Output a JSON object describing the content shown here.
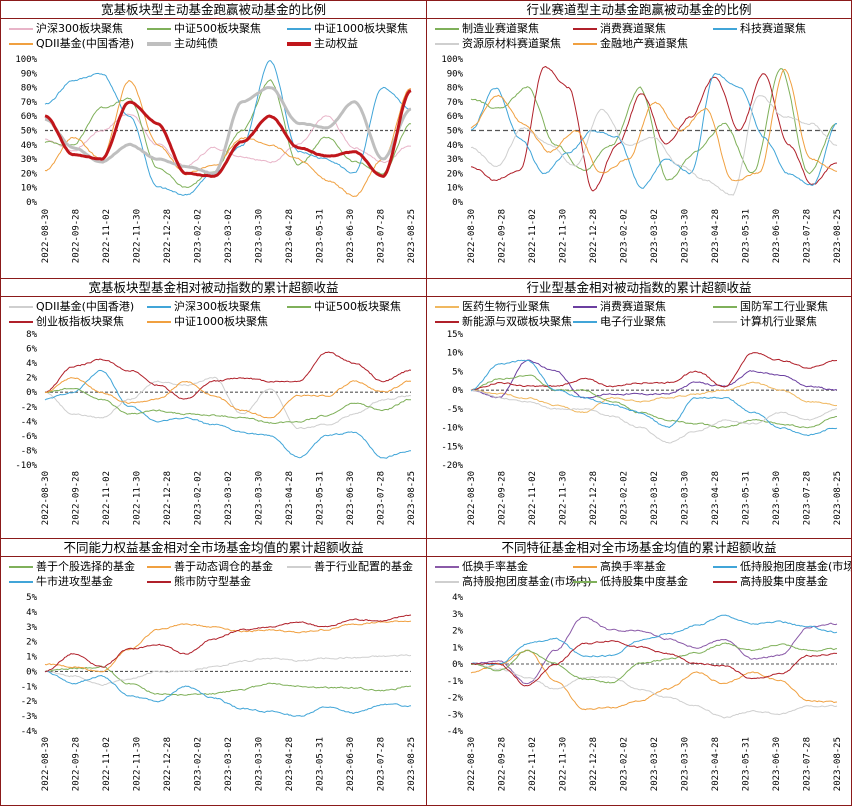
{
  "chart_data": [
    {
      "id": "p1",
      "type": "line",
      "title": "宽基板块型主动基金跑赢被动基金的比例",
      "xlabel": "",
      "ylabel": "",
      "x": [
        "2022-08-30",
        "2022-09-28",
        "2022-11-02",
        "2022-11-30",
        "2022-12-28",
        "2023-02-02",
        "2023-03-02",
        "2023-03-30",
        "2023-04-28",
        "2023-05-31",
        "2023-06-30",
        "2023-07-28",
        "2023-08-25"
      ],
      "ylim": [
        0,
        100
      ],
      "yticks": [
        0,
        10,
        20,
        30,
        40,
        50,
        60,
        70,
        80,
        90,
        100
      ],
      "ytick_labels": [
        "0%",
        "10%",
        "20%",
        "30%",
        "40%",
        "50%",
        "60%",
        "70%",
        "80%",
        "90%",
        "100%"
      ],
      "reference_line": 50,
      "grid": false,
      "legend_position": "top",
      "series": [
        {
          "name": "沪深300板块聚焦",
          "color": "#e8b4c8",
          "width": 1,
          "values": [
            44,
            36,
            50,
            62,
            40,
            25,
            38,
            32,
            28,
            40,
            60,
            38,
            28,
            40
          ]
        },
        {
          "name": "中证500板块聚焦",
          "color": "#7fb05a",
          "width": 1,
          "values": [
            42,
            40,
            66,
            72,
            24,
            10,
            22,
            50,
            85,
            26,
            45,
            28,
            20,
            55
          ]
        },
        {
          "name": "中证1000板块聚焦",
          "color": "#41a5d8",
          "width": 1,
          "values": [
            68,
            85,
            90,
            60,
            10,
            5,
            20,
            40,
            98,
            35,
            30,
            20,
            80,
            65
          ]
        },
        {
          "name": "QDII基金(中国香港)",
          "color": "#f0a040",
          "width": 1,
          "values": [
            22,
            45,
            30,
            85,
            40,
            20,
            25,
            45,
            40,
            30,
            15,
            4,
            30,
            80
          ]
        },
        {
          "name": "主动纯债",
          "color": "#bfbfbf",
          "width": 3,
          "values": [
            58,
            38,
            28,
            40,
            30,
            25,
            20,
            70,
            80,
            55,
            52,
            70,
            30,
            65
          ]
        },
        {
          "name": "主动权益",
          "color": "#c0161b",
          "width": 3,
          "values": [
            60,
            33,
            30,
            70,
            55,
            20,
            18,
            42,
            60,
            38,
            32,
            35,
            18,
            78
          ]
        }
      ]
    },
    {
      "id": "p2",
      "type": "line",
      "title": "行业赛道型主动基金跑赢被动基金的比例",
      "xlabel": "",
      "ylabel": "",
      "x": [
        "2022-08-30",
        "2022-09-28",
        "2022-11-02",
        "2022-11-30",
        "2022-12-28",
        "2023-02-02",
        "2023-03-02",
        "2023-03-30",
        "2023-04-28",
        "2023-05-31",
        "2023-06-30",
        "2023-07-28",
        "2023-08-25"
      ],
      "ylim": [
        0,
        100
      ],
      "yticks": [
        0,
        10,
        20,
        30,
        40,
        50,
        60,
        70,
        80,
        90,
        100
      ],
      "ytick_labels": [
        "0%",
        "10%",
        "20%",
        "30%",
        "40%",
        "50%",
        "60%",
        "70%",
        "80%",
        "90%",
        "100%"
      ],
      "reference_line": 50,
      "grid": false,
      "legend_position": "top",
      "series": [
        {
          "name": "制造业赛道聚焦",
          "color": "#7fb05a",
          "width": 1,
          "values": [
            72,
            65,
            80,
            40,
            22,
            40,
            80,
            15,
            35,
            55,
            20,
            93,
            20,
            55
          ]
        },
        {
          "name": "消费赛道聚焦",
          "color": "#b0202a",
          "width": 1,
          "values": [
            25,
            15,
            22,
            95,
            80,
            8,
            40,
            76,
            40,
            60,
            88,
            50,
            90,
            40,
            12,
            28
          ]
        },
        {
          "name": "科技赛道聚焦",
          "color": "#41a5d8",
          "width": 1,
          "values": [
            50,
            80,
            45,
            20,
            35,
            50,
            45,
            10,
            30,
            20,
            90,
            80,
            45,
            20,
            12,
            55
          ]
        },
        {
          "name": "资源原材料赛道聚焦",
          "color": "#cfcfcf",
          "width": 1,
          "values": [
            38,
            25,
            52,
            40,
            25,
            65,
            40,
            45,
            25,
            15,
            5,
            75,
            60,
            55,
            40
          ]
        },
        {
          "name": "金融地产赛道聚焦",
          "color": "#f0a040",
          "width": 1,
          "values": [
            52,
            75,
            55,
            35,
            50,
            20,
            30,
            70,
            50,
            65,
            15,
            20,
            92,
            30,
            22
          ]
        }
      ]
    },
    {
      "id": "p3",
      "type": "line",
      "title": "宽基板块型基金相对被动指数的累计超额收益",
      "xlabel": "",
      "ylabel": "",
      "x": [
        "2022-08-30",
        "2022-09-28",
        "2022-11-02",
        "2022-11-30",
        "2022-12-28",
        "2023-02-02",
        "2023-03-02",
        "2023-03-30",
        "2023-04-28",
        "2023-05-31",
        "2023-06-30",
        "2023-07-28",
        "2023-08-25"
      ],
      "ylim": [
        -10,
        8
      ],
      "yticks": [
        -10,
        -8,
        -6,
        -4,
        -2,
        0,
        2,
        4,
        6,
        8
      ],
      "ytick_labels": [
        "-10%",
        "-8%",
        "-6%",
        "-4%",
        "-2%",
        "0%",
        "2%",
        "4%",
        "6%",
        "8%"
      ],
      "reference_line": 0,
      "grid": false,
      "legend_position": "top",
      "series": [
        {
          "name": "QDII基金(中国香港)",
          "color": "#cfcfcf",
          "width": 1,
          "values": [
            0,
            -3,
            -3.5,
            -1,
            1.5,
            1,
            2,
            -3,
            0.5,
            -5,
            -4.5,
            -3,
            -1,
            -0.5
          ]
        },
        {
          "name": "沪深300板块聚焦",
          "color": "#41a5d8",
          "width": 1,
          "values": [
            -1,
            0,
            3,
            -2,
            -4,
            -3.5,
            -4.5,
            -5.5,
            -6,
            -9,
            -6,
            -5.5,
            -9,
            -8
          ]
        },
        {
          "name": "中证500板块聚焦",
          "color": "#7fb05a",
          "width": 1,
          "values": [
            0,
            0.5,
            -1,
            -3,
            -2.5,
            -3,
            -3.2,
            -3.5,
            -4.2,
            -4,
            -3.2,
            -1.5,
            -2.5,
            -1
          ]
        },
        {
          "name": "创业板指板块聚焦",
          "color": "#b0202a",
          "width": 1,
          "values": [
            0,
            3.5,
            4.5,
            3,
            1,
            -1,
            1.5,
            2,
            1.5,
            1.5,
            5.5,
            4,
            1.5,
            3
          ]
        },
        {
          "name": "中证1000板块聚焦",
          "color": "#f0a040",
          "width": 1,
          "values": [
            0,
            2,
            0,
            -1.5,
            -1,
            1.5,
            -0.5,
            -2.5,
            -3.5,
            -0.5,
            -0.5,
            1.5,
            0,
            1.5
          ]
        }
      ]
    },
    {
      "id": "p4",
      "type": "line",
      "title": "行业型基金相对被动指数的累计超额收益",
      "xlabel": "",
      "ylabel": "",
      "x": [
        "2022-08-30",
        "2022-09-28",
        "2022-11-02",
        "2022-11-30",
        "2022-12-28",
        "2023-02-02",
        "2023-03-02",
        "2023-03-30",
        "2023-04-28",
        "2023-05-31",
        "2023-06-30",
        "2023-07-28",
        "2023-08-25"
      ],
      "ylim": [
        -20,
        15
      ],
      "yticks": [
        -20,
        -15,
        -10,
        -5,
        0,
        5,
        10,
        15
      ],
      "ytick_labels": [
        "-20%",
        "-15%",
        "-10%",
        "-5%",
        "0%",
        "5%",
        "10%",
        "15%"
      ],
      "reference_line": 0,
      "grid": false,
      "legend_position": "top",
      "series": [
        {
          "name": "医药生物行业聚焦",
          "color": "#f0b860",
          "width": 1,
          "values": [
            0,
            -1,
            -2,
            -4,
            -6,
            -2,
            -3,
            -2,
            -1,
            0,
            2,
            0,
            -3,
            -4
          ]
        },
        {
          "name": "消费赛道聚焦",
          "color": "#6b3fa0",
          "width": 1,
          "values": [
            0,
            -2,
            8,
            5,
            -2,
            -1,
            -1,
            -1,
            2,
            1,
            5,
            4,
            1,
            0
          ]
        },
        {
          "name": "国防军工行业聚焦",
          "color": "#7fb05a",
          "width": 1,
          "values": [
            0,
            3,
            4,
            0,
            0,
            -3,
            -6,
            -8,
            -9,
            -10,
            -8,
            -9,
            -10,
            -7
          ]
        },
        {
          "name": "新能源与双碳板块聚焦",
          "color": "#b0202a",
          "width": 1,
          "values": [
            0,
            2,
            1,
            1,
            3,
            1,
            2,
            2,
            5,
            1,
            10,
            8,
            6,
            8
          ]
        },
        {
          "name": "电子行业聚焦",
          "color": "#41a5d8",
          "width": 1,
          "values": [
            0,
            7,
            8,
            0,
            -2,
            -4,
            -6,
            -10,
            -2,
            -2,
            -6,
            -10,
            -12,
            -10
          ]
        },
        {
          "name": "计算机行业聚焦",
          "color": "#cfcfcf",
          "width": 1,
          "values": [
            0,
            -2,
            -3,
            -5,
            -5,
            -7,
            -10,
            -14,
            -11,
            -8,
            -9,
            -6,
            -8,
            -5
          ]
        }
      ]
    },
    {
      "id": "p5",
      "type": "line",
      "title": "不同能力权益基金相对全市场基金均值的累计超额收益",
      "xlabel": "",
      "ylabel": "",
      "x": [
        "2022-08-30",
        "2022-09-28",
        "2022-11-02",
        "2022-11-30",
        "2022-12-28",
        "2023-02-02",
        "2023-03-02",
        "2023-03-30",
        "2023-04-28",
        "2023-05-31",
        "2023-06-30",
        "2023-07-28",
        "2023-08-25"
      ],
      "ylim": [
        -4,
        5
      ],
      "yticks": [
        -4,
        -3,
        -2,
        -1,
        0,
        1,
        2,
        3,
        4,
        5
      ],
      "ytick_labels": [
        "-4%",
        "-3%",
        "-2%",
        "-1%",
        "0%",
        "1%",
        "2%",
        "3%",
        "4%",
        "5%"
      ],
      "reference_line": 0,
      "grid": false,
      "legend_position": "top",
      "series": [
        {
          "name": "善于个股选择的基金",
          "color": "#7fb05a",
          "width": 1,
          "values": [
            0,
            0.2,
            0.3,
            -0.8,
            -1.5,
            -1.6,
            -1.5,
            -1.2,
            -0.8,
            -1.0,
            -1.1,
            -1.1,
            -1.3,
            -1.0
          ]
        },
        {
          "name": "善于动态调仓的基金",
          "color": "#f0a040",
          "width": 1,
          "values": [
            0.5,
            0.3,
            0,
            1.5,
            2.8,
            3.2,
            3.0,
            2.7,
            2.8,
            2.6,
            2.8,
            3.2,
            3.3,
            3.4
          ]
        },
        {
          "name": "善于行业配置的基金",
          "color": "#cfcfcf",
          "width": 1,
          "values": [
            0,
            -0.3,
            -0.9,
            -0.5,
            0,
            0,
            0.3,
            0.7,
            0.9,
            0.7,
            0.9,
            0.9,
            1.0,
            1.1
          ]
        },
        {
          "name": "牛市进攻型基金",
          "color": "#41a5d8",
          "width": 1,
          "values": [
            0,
            -0.8,
            -0.3,
            -1.6,
            -2,
            -1.0,
            -1.8,
            -2.5,
            -2.7,
            -3.0,
            -2.4,
            -2.8,
            -2.2,
            -2.3
          ]
        },
        {
          "name": "熊市防守型基金",
          "color": "#b0202a",
          "width": 1,
          "values": [
            0,
            1.2,
            0.3,
            1.5,
            1.8,
            1.2,
            2.2,
            2.8,
            3.0,
            3.3,
            3.0,
            3.5,
            3.4,
            3.8
          ]
        }
      ]
    },
    {
      "id": "p6",
      "type": "line",
      "title": "不同特征基金相对全市场基金均值的累计超额收益",
      "xlabel": "",
      "ylabel": "",
      "x": [
        "2022-08-30",
        "2022-09-28",
        "2022-11-02",
        "2022-11-30",
        "2022-12-28",
        "2023-02-02",
        "2023-03-02",
        "2023-03-30",
        "2023-04-28",
        "2023-05-31",
        "2023-06-30",
        "2023-07-28",
        "2023-08-25"
      ],
      "ylim": [
        -4,
        4
      ],
      "yticks": [
        -4,
        -3,
        -2,
        -1,
        0,
        1,
        2,
        3,
        4
      ],
      "ytick_labels": [
        "-4%",
        "-3%",
        "-2%",
        "-1%",
        "0%",
        "1%",
        "2%",
        "3%",
        "4%"
      ],
      "reference_line": 0,
      "grid": false,
      "legend_position": "top",
      "series": [
        {
          "name": "低换手率基金",
          "color": "#8a5aa8",
          "width": 1,
          "values": [
            0,
            0.2,
            -1.2,
            0.8,
            2.8,
            2.0,
            2.0,
            1.5,
            1.0,
            1.5,
            0.3,
            0.5,
            2.2,
            2.4
          ]
        },
        {
          "name": "高换手率基金",
          "color": "#f0a040",
          "width": 1,
          "values": [
            -0.5,
            0,
            0.8,
            -1.0,
            -2.7,
            -2.6,
            -2.2,
            -1.5,
            -0.5,
            -1.2,
            -0.5,
            -1.0,
            -2.2,
            -2.3
          ]
        },
        {
          "name": "低持股抱团度基金(市场内)",
          "color": "#41a5d8",
          "width": 1,
          "values": [
            0,
            0,
            1.2,
            1.5,
            0.5,
            0.5,
            1.4,
            1.8,
            2.3,
            2.9,
            2.4,
            2.5,
            2.2,
            1.9
          ]
        },
        {
          "name": "高持股抱团度基金(市场内)",
          "color": "#cfcfcf",
          "width": 1,
          "values": [
            0,
            -0.3,
            -0.8,
            -1.5,
            -0.8,
            -0.8,
            -1.5,
            -2.0,
            -2.5,
            -3.2,
            -2.8,
            -3.0,
            -2.5,
            -2.5
          ]
        },
        {
          "name": "低持股集中度基金",
          "color": "#7fb05a",
          "width": 1,
          "values": [
            0,
            -0.4,
            0.8,
            0.0,
            -0.9,
            -1.1,
            0,
            0.3,
            0.7,
            1.2,
            0.8,
            1.2,
            0.8,
            0.9
          ]
        },
        {
          "name": "高持股集中度基金",
          "color": "#b0202a",
          "width": 1,
          "values": [
            0,
            0,
            -1.3,
            0,
            1.2,
            1.4,
            1.0,
            0.6,
            0,
            -0.1,
            -0.9,
            -0.6,
            0.5,
            0.6
          ]
        }
      ]
    }
  ]
}
